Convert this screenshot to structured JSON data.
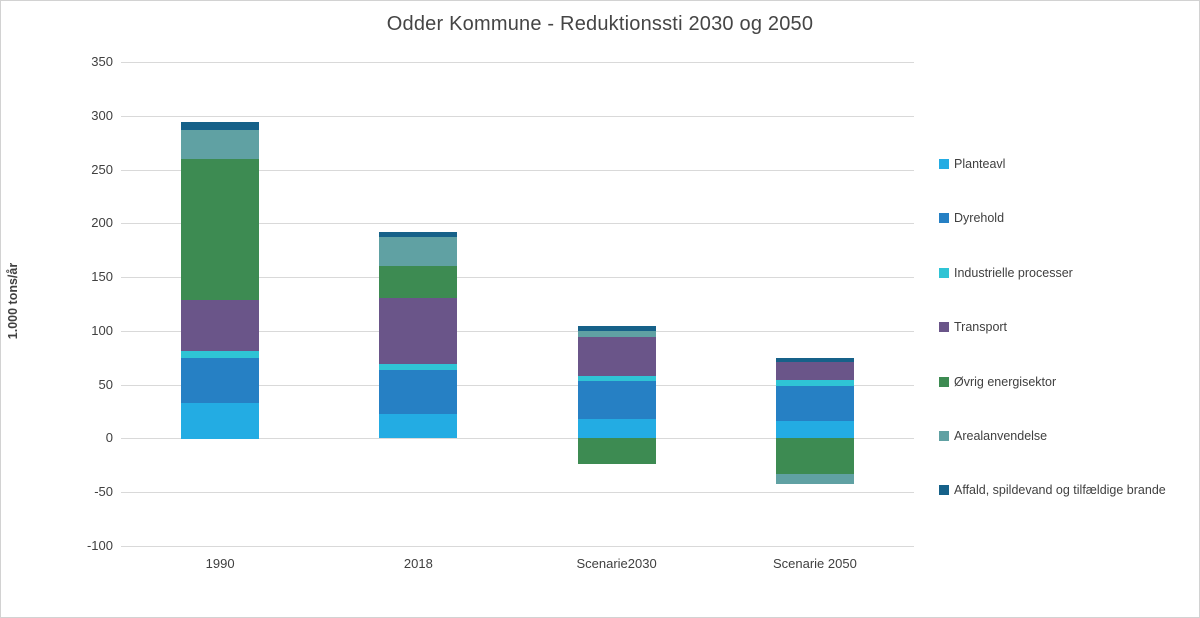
{
  "chart_data": {
    "type": "bar",
    "stacked": true,
    "title": "Odder Kommune - Reduktionssti 2030 og 2050",
    "ylabel": "1.000 tons/år",
    "xlabel": "",
    "categories": [
      "1990",
      "2018",
      "Scenarie2030",
      "Scenarie 2050"
    ],
    "series": [
      {
        "name": "Planteavl",
        "color": "#23ACE3",
        "values": [
          33,
          23,
          18,
          16
        ]
      },
      {
        "name": "Dyrehold",
        "color": "#2680C4",
        "values": [
          42,
          41,
          35,
          33
        ]
      },
      {
        "name": "Industrielle processer",
        "color": "#2FC4D5",
        "values": [
          6,
          5,
          5,
          5
        ]
      },
      {
        "name": "Transport",
        "color": "#6A5589",
        "values": [
          48,
          62,
          36,
          17
        ]
      },
      {
        "name": "Øvrig energisektor",
        "color": "#3D8B52",
        "values": [
          131,
          29,
          -24,
          -33
        ]
      },
      {
        "name": "Arealanvendelse",
        "color": "#60A1A3",
        "values": [
          27,
          27,
          6,
          -9
        ]
      },
      {
        "name": "Affald, spildevand og tilfældige brande",
        "color": "#166189",
        "values": [
          7,
          5,
          5,
          4
        ]
      }
    ],
    "ylim": [
      -100,
      350
    ],
    "ytick_step": 50,
    "grid": true,
    "grid_color": "#D9D9D9",
    "text_color": "#404040",
    "legend_position": "right"
  }
}
